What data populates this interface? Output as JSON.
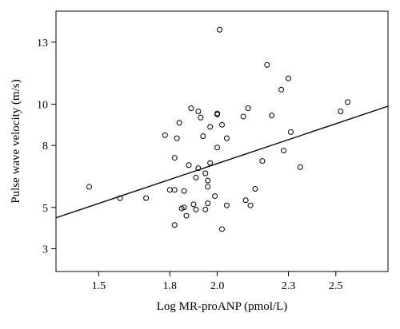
{
  "chart_data": {
    "type": "scatter",
    "xlabel": "Log MR-proANP (pmol/L)",
    "ylabel": "Pulse wave velocity (m/s)",
    "xlim": [
      1.32,
      2.72
    ],
    "ylim": [
      1.9,
      14.5
    ],
    "xticks": [
      1.5,
      1.8,
      2.0,
      2.3,
      2.5
    ],
    "xtick_labels": [
      "1.5",
      "1.8",
      "2.0",
      "2.3",
      "2.5"
    ],
    "yticks": [
      3,
      5,
      8,
      10,
      13
    ],
    "ytick_labels": [
      "3",
      "5",
      "8",
      "10",
      "13"
    ],
    "grid": false,
    "trendline": {
      "x": [
        1.32,
        2.72
      ],
      "y": [
        4.5,
        9.9
      ]
    },
    "points": [
      {
        "x": 1.46,
        "y": 6.0
      },
      {
        "x": 1.59,
        "y": 5.45
      },
      {
        "x": 1.7,
        "y": 5.45
      },
      {
        "x": 1.78,
        "y": 8.5
      },
      {
        "x": 1.8,
        "y": 5.85
      },
      {
        "x": 1.82,
        "y": 5.85
      },
      {
        "x": 1.82,
        "y": 7.4
      },
      {
        "x": 1.82,
        "y": 4.15
      },
      {
        "x": 1.83,
        "y": 8.35
      },
      {
        "x": 1.84,
        "y": 9.1
      },
      {
        "x": 1.85,
        "y": 4.95
      },
      {
        "x": 1.86,
        "y": 5.8
      },
      {
        "x": 1.86,
        "y": 5.0
      },
      {
        "x": 1.87,
        "y": 4.6
      },
      {
        "x": 1.88,
        "y": 7.05
      },
      {
        "x": 1.89,
        "y": 9.8
      },
      {
        "x": 1.9,
        "y": 5.15
      },
      {
        "x": 1.91,
        "y": 4.9
      },
      {
        "x": 1.91,
        "y": 6.45
      },
      {
        "x": 1.92,
        "y": 6.9
      },
      {
        "x": 1.92,
        "y": 9.65
      },
      {
        "x": 1.93,
        "y": 9.35
      },
      {
        "x": 1.94,
        "y": 8.45
      },
      {
        "x": 1.95,
        "y": 4.9
      },
      {
        "x": 1.95,
        "y": 6.65
      },
      {
        "x": 1.96,
        "y": 6.3
      },
      {
        "x": 1.96,
        "y": 6.0
      },
      {
        "x": 1.96,
        "y": 5.2
      },
      {
        "x": 1.97,
        "y": 8.9
      },
      {
        "x": 1.97,
        "y": 7.15
      },
      {
        "x": 1.99,
        "y": 5.55
      },
      {
        "x": 2.0,
        "y": 9.55
      },
      {
        "x": 2.0,
        "y": 9.5
      },
      {
        "x": 2.0,
        "y": 7.9
      },
      {
        "x": 2.01,
        "y": 13.6
      },
      {
        "x": 2.02,
        "y": 9.0
      },
      {
        "x": 2.02,
        "y": 3.95
      },
      {
        "x": 2.04,
        "y": 8.35
      },
      {
        "x": 2.04,
        "y": 5.1
      },
      {
        "x": 2.11,
        "y": 9.4
      },
      {
        "x": 2.12,
        "y": 5.35
      },
      {
        "x": 2.13,
        "y": 9.8
      },
      {
        "x": 2.14,
        "y": 5.1
      },
      {
        "x": 2.16,
        "y": 5.9
      },
      {
        "x": 2.19,
        "y": 7.25
      },
      {
        "x": 2.21,
        "y": 11.9
      },
      {
        "x": 2.23,
        "y": 9.45
      },
      {
        "x": 2.27,
        "y": 10.7
      },
      {
        "x": 2.28,
        "y": 7.75
      },
      {
        "x": 2.3,
        "y": 11.25
      },
      {
        "x": 2.31,
        "y": 8.65
      },
      {
        "x": 2.35,
        "y": 6.95
      },
      {
        "x": 2.52,
        "y": 9.65
      },
      {
        "x": 2.55,
        "y": 10.1
      }
    ]
  }
}
